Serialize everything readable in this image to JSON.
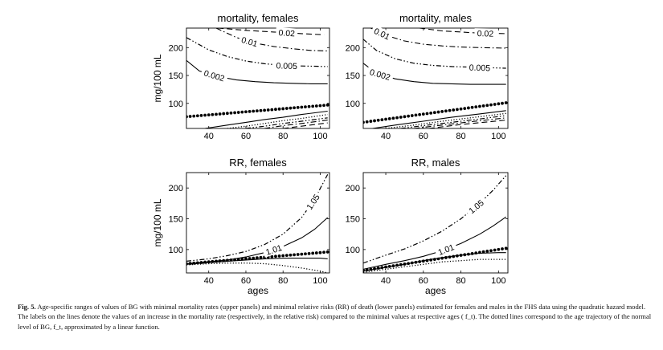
{
  "chart_data": [
    {
      "type": "line",
      "title": "mortality, females",
      "xlabel": "",
      "ylabel": "mg/100 mL",
      "xlim": [
        28,
        105
      ],
      "ylim": [
        55,
        235
      ],
      "xticks": [
        40,
        60,
        80,
        100
      ],
      "yticks": [
        100,
        150,
        200
      ],
      "series": [
        {
          "label": "0.02",
          "style": "dashed",
          "x": [
            45,
            60,
            75,
            90,
            102
          ],
          "y": [
            235,
            231,
            228,
            225,
            223
          ]
        },
        {
          "label": "0.01",
          "style": "dashdot",
          "x": [
            44,
            55,
            65,
            75,
            85,
            95,
            104
          ],
          "y": [
            235,
            218,
            208,
            202,
            198,
            195,
            194
          ]
        },
        {
          "label": "0.005",
          "style": "dashdotdot",
          "x": [
            28,
            40,
            50,
            60,
            70,
            80,
            90,
            104
          ],
          "y": [
            218,
            196,
            184,
            176,
            171,
            168,
            167,
            166
          ]
        },
        {
          "label": "0.002",
          "style": "solid",
          "x": [
            28,
            35,
            45,
            55,
            65,
            75,
            85,
            95,
            104
          ],
          "y": [
            177,
            158,
            148,
            142,
            139,
            137,
            136,
            135,
            135
          ]
        },
        {
          "style": "dotted-heavy",
          "x": [
            28,
            104
          ],
          "y": [
            76,
            97
          ]
        },
        {
          "style": "solid",
          "x": [
            38,
            50,
            60,
            70,
            80,
            90,
            104
          ],
          "y": [
            55,
            61,
            66,
            71,
            75,
            80,
            86
          ]
        },
        {
          "style": "dotted",
          "x": [
            50,
            60,
            70,
            80,
            90,
            104
          ],
          "y": [
            55,
            59,
            64,
            69,
            73,
            80
          ]
        },
        {
          "style": "dashdotdot",
          "x": [
            60,
            70,
            80,
            90,
            104
          ],
          "y": [
            55,
            59,
            64,
            68,
            74
          ]
        },
        {
          "style": "dashdot",
          "x": [
            70,
            80,
            90,
            104
          ],
          "y": [
            55,
            60,
            64,
            70
          ]
        },
        {
          "style": "dashed",
          "x": [
            80,
            90,
            104
          ],
          "y": [
            55,
            59,
            65
          ]
        }
      ]
    },
    {
      "type": "line",
      "title": "mortality, males",
      "xlabel": "",
      "ylabel": "",
      "xlim": [
        28,
        105
      ],
      "ylim": [
        55,
        235
      ],
      "xticks": [
        40,
        60,
        80,
        100
      ],
      "yticks": [
        100,
        150,
        200
      ],
      "series": [
        {
          "label": "0.02",
          "style": "dashed",
          "x": [
            58,
            70,
            80,
            90,
            104
          ],
          "y": [
            235,
            230,
            228,
            226,
            225
          ]
        },
        {
          "label": "0.01",
          "style": "dashdot",
          "x": [
            32,
            40,
            50,
            60,
            70,
            80,
            90,
            104
          ],
          "y": [
            235,
            222,
            212,
            206,
            203,
            201,
            200,
            199
          ]
        },
        {
          "label": "0.005",
          "style": "dashdotdot",
          "x": [
            28,
            35,
            45,
            55,
            65,
            75,
            85,
            95,
            104
          ],
          "y": [
            215,
            195,
            180,
            172,
            168,
            166,
            165,
            164,
            163
          ]
        },
        {
          "label": "0.002",
          "style": "solid",
          "x": [
            28,
            35,
            45,
            55,
            65,
            75,
            85,
            95,
            104
          ],
          "y": [
            172,
            154,
            144,
            139,
            136,
            135,
            134,
            134,
            134
          ]
        },
        {
          "style": "dotted-heavy",
          "x": [
            28,
            104
          ],
          "y": [
            66,
            101
          ]
        },
        {
          "style": "solid",
          "x": [
            33,
            45,
            60,
            75,
            90,
            104
          ],
          "y": [
            55,
            61,
            68,
            75,
            81,
            87
          ]
        },
        {
          "style": "dotted",
          "x": [
            40,
            55,
            70,
            85,
            104
          ],
          "y": [
            55,
            61,
            68,
            74,
            82
          ]
        },
        {
          "style": "dashdotdot",
          "x": [
            48,
            60,
            75,
            90,
            104
          ],
          "y": [
            55,
            60,
            66,
            72,
            78
          ]
        },
        {
          "style": "dashdot",
          "x": [
            55,
            70,
            85,
            104
          ],
          "y": [
            55,
            61,
            67,
            74
          ]
        },
        {
          "style": "dashed",
          "x": [
            63,
            80,
            95,
            104
          ],
          "y": [
            55,
            62,
            67,
            70
          ]
        }
      ]
    },
    {
      "type": "line",
      "title": "RR, females",
      "xlabel": "ages",
      "ylabel": "mg/100 mL",
      "xlim": [
        28,
        105
      ],
      "ylim": [
        62,
        225
      ],
      "xticks": [
        40,
        60,
        80,
        100
      ],
      "yticks": [
        100,
        150,
        200
      ],
      "series": [
        {
          "label": "1.05",
          "style": "dashdotdot",
          "x": [
            28,
            40,
            50,
            60,
            70,
            80,
            90,
            97,
            104
          ],
          "y": [
            81,
            85,
            90,
            97,
            108,
            125,
            152,
            182,
            222
          ]
        },
        {
          "label": "1.01",
          "style": "solid",
          "x": [
            28,
            40,
            50,
            60,
            70,
            80,
            90,
            97,
            104
          ],
          "y": [
            77,
            80,
            83,
            88,
            95,
            105,
            119,
            133,
            152
          ]
        },
        {
          "style": "dotted-heavy",
          "x": [
            28,
            104
          ],
          "y": [
            77,
            96
          ]
        },
        {
          "style": "solid",
          "x": [
            28,
            40,
            50,
            60,
            70,
            80,
            90,
            100,
            104
          ],
          "y": [
            76,
            79,
            81,
            83,
            85,
            86,
            86,
            86,
            85
          ]
        },
        {
          "style": "dotted",
          "x": [
            28,
            40,
            50,
            60,
            70,
            80,
            90,
            100,
            104
          ],
          "y": [
            75,
            77,
            78,
            78,
            77,
            74,
            70,
            65,
            62
          ]
        }
      ]
    },
    {
      "type": "line",
      "title": "RR, males",
      "xlabel": "ages",
      "ylabel": "",
      "xlim": [
        28,
        105
      ],
      "ylim": [
        62,
        225
      ],
      "xticks": [
        40,
        60,
        80,
        100
      ],
      "yticks": [
        100,
        150,
        200
      ],
      "series": [
        {
          "label": "1.05",
          "style": "dashdotdot",
          "x": [
            28,
            40,
            50,
            60,
            70,
            80,
            90,
            97,
            104
          ],
          "y": [
            78,
            91,
            101,
            114,
            130,
            150,
            175,
            196,
            220
          ]
        },
        {
          "label": "1.01",
          "style": "solid",
          "x": [
            28,
            40,
            50,
            60,
            70,
            80,
            90,
            97,
            104
          ],
          "y": [
            68,
            76,
            82,
            89,
            98,
            110,
            125,
            138,
            153
          ]
        },
        {
          "style": "dotted-heavy",
          "x": [
            28,
            104
          ],
          "y": [
            66,
            102
          ]
        },
        {
          "style": "solid",
          "x": [
            28,
            40,
            50,
            60,
            70,
            80,
            90,
            100,
            104
          ],
          "y": [
            65,
            71,
            76,
            82,
            87,
            91,
            94,
            95,
            95
          ]
        },
        {
          "style": "dotted",
          "x": [
            28,
            40,
            50,
            60,
            70,
            80,
            90,
            100,
            104
          ],
          "y": [
            63,
            68,
            72,
            76,
            80,
            82,
            84,
            84,
            84
          ]
        }
      ]
    }
  ],
  "caption": {
    "label": "Fig. 5.",
    "text": " Age-specific ranges of values of BG with minimal mortality rates (upper panels) and minimal relative risks (RR) of death (lower panels) estimated for females and males in the FHS data using the quadratic hazard model. The labels on the lines denote the values of an increase in the mortality rate (respectively, in the relative risk) compared to the minimal values at respective ages ( f_t). The dotted lines correspond to the age trajectory of the normal level of BG, f_t, approximated by a linear function."
  }
}
